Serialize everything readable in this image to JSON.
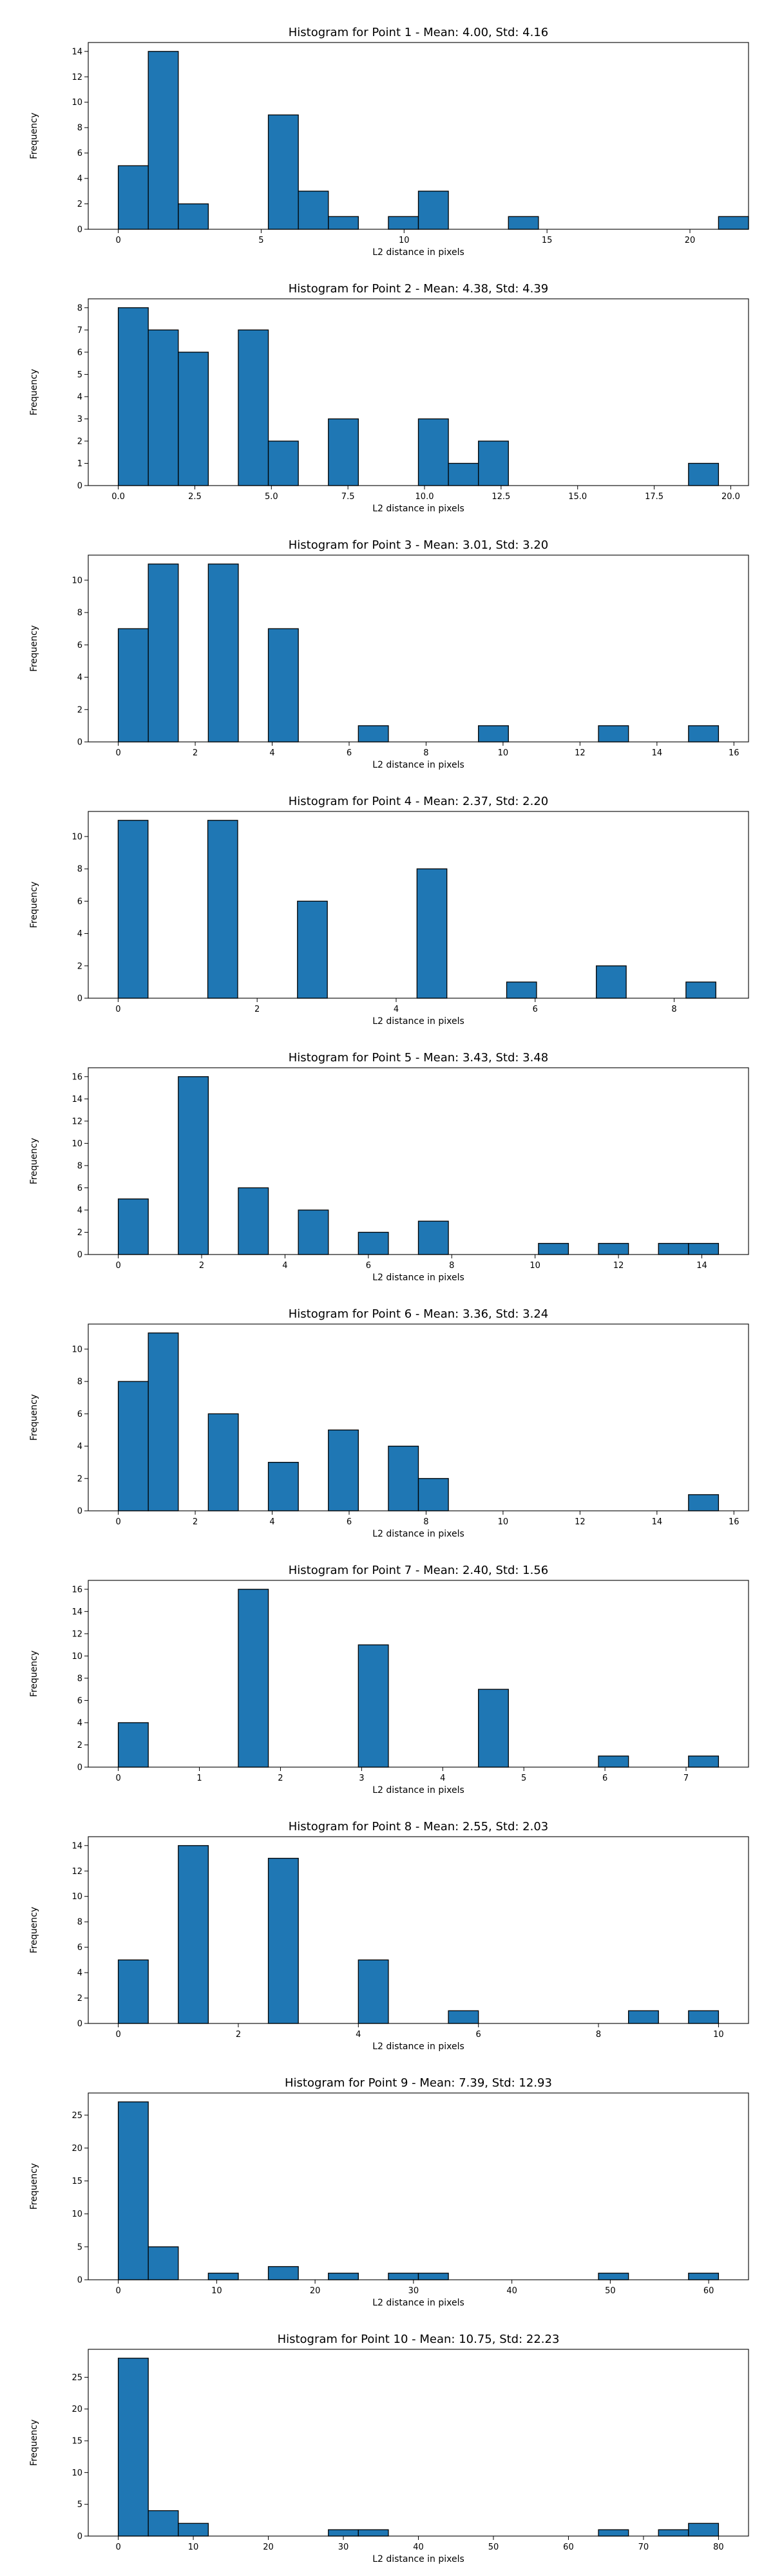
{
  "chart_data": [
    {
      "type": "bar",
      "title": "Histogram for Point 1 - Mean: 4.00, Std: 4.16",
      "xlabel": "L2 distance in pixels",
      "ylabel": "Frequency",
      "xlim": [
        -1.05,
        22.05
      ],
      "ylim": [
        0,
        14.7
      ],
      "bin_start": 0,
      "bin_width": 1.05,
      "values": [
        5,
        14,
        2,
        0,
        0,
        9,
        3,
        1,
        0,
        1,
        3,
        0,
        0,
        1,
        0,
        0,
        0,
        0,
        0,
        0,
        1
      ],
      "xticks": [
        0,
        5,
        10,
        15,
        20
      ],
      "xtick_labels": [
        "0",
        "5",
        "10",
        "15",
        "20"
      ],
      "yticks": [
        0,
        2,
        4,
        6,
        8,
        10,
        12,
        14
      ],
      "ytick_labels": [
        "0",
        "2",
        "4",
        "6",
        "8",
        "10",
        "12",
        "14"
      ]
    },
    {
      "type": "bar",
      "title": "Histogram for Point 2 - Mean: 4.38, Std: 4.39",
      "xlabel": "L2 distance in pixels",
      "ylabel": "Frequency",
      "xlim": [
        -0.98,
        20.58
      ],
      "ylim": [
        0,
        8.4
      ],
      "bin_start": 0,
      "bin_width": 0.98,
      "values": [
        8,
        7,
        6,
        0,
        7,
        2,
        0,
        3,
        0,
        0,
        3,
        1,
        2,
        0,
        0,
        0,
        0,
        0,
        0,
        1
      ],
      "xticks": [
        0,
        2.5,
        5,
        7.5,
        10,
        12.5,
        15,
        17.5,
        20
      ],
      "xtick_labels": [
        "0.0",
        "2.5",
        "5.0",
        "7.5",
        "10.0",
        "12.5",
        "15.0",
        "17.5",
        "20.0"
      ],
      "yticks": [
        0,
        1,
        2,
        3,
        4,
        5,
        6,
        7,
        8
      ],
      "ytick_labels": [
        "0",
        "1",
        "2",
        "3",
        "4",
        "5",
        "6",
        "7",
        "8"
      ]
    },
    {
      "type": "bar",
      "title": "Histogram for Point 3 - Mean: 3.01, Std: 3.20",
      "xlabel": "L2 distance in pixels",
      "ylabel": "Frequency",
      "xlim": [
        -0.78,
        16.38
      ],
      "ylim": [
        0,
        11.55
      ],
      "bin_start": 0,
      "bin_width": 0.78,
      "values": [
        7,
        11,
        0,
        11,
        0,
        7,
        0,
        0,
        1,
        0,
        0,
        0,
        1,
        0,
        0,
        0,
        1,
        0,
        0,
        1
      ],
      "xticks": [
        0,
        2,
        4,
        6,
        8,
        10,
        12,
        14,
        16
      ],
      "xtick_labels": [
        "0",
        "2",
        "4",
        "6",
        "8",
        "10",
        "12",
        "14",
        "16"
      ],
      "yticks": [
        0,
        2,
        4,
        6,
        8,
        10
      ],
      "ytick_labels": [
        "0",
        "2",
        "4",
        "6",
        "8",
        "10"
      ]
    },
    {
      "type": "bar",
      "title": "Histogram for Point 4 - Mean: 2.37, Std: 2.20",
      "xlabel": "L2 distance in pixels",
      "ylabel": "Frequency",
      "xlim": [
        -0.43,
        9.07
      ],
      "ylim": [
        0,
        11.55
      ],
      "bin_start": 0,
      "bin_width": 0.43,
      "values": [
        11,
        0,
        0,
        11,
        0,
        0,
        6,
        0,
        0,
        0,
        8,
        0,
        0,
        1,
        0,
        0,
        2,
        0,
        0,
        1
      ],
      "xticks": [
        0,
        2,
        4,
        6,
        8
      ],
      "xtick_labels": [
        "0",
        "2",
        "4",
        "6",
        "8"
      ],
      "yticks": [
        0,
        2,
        4,
        6,
        8,
        10
      ],
      "ytick_labels": [
        "0",
        "2",
        "4",
        "6",
        "8",
        "10"
      ]
    },
    {
      "type": "bar",
      "title": "Histogram for Point 5 - Mean: 3.43, Std: 3.48",
      "xlabel": "L2 distance in pixels",
      "ylabel": "Frequency",
      "xlim": [
        -0.72,
        15.12
      ],
      "ylim": [
        0,
        16.8
      ],
      "bin_start": 0,
      "bin_width": 0.72,
      "values": [
        5,
        0,
        16,
        0,
        6,
        0,
        4,
        0,
        2,
        0,
        3,
        0,
        0,
        0,
        1,
        0,
        1,
        0,
        1,
        1
      ],
      "xticks": [
        0,
        2,
        4,
        6,
        8,
        10,
        12,
        14
      ],
      "xtick_labels": [
        "0",
        "2",
        "4",
        "6",
        "8",
        "10",
        "12",
        "14"
      ],
      "yticks": [
        0,
        2,
        4,
        6,
        8,
        10,
        12,
        14,
        16
      ],
      "ytick_labels": [
        "0",
        "2",
        "4",
        "6",
        "8",
        "10",
        "12",
        "14",
        "16"
      ]
    },
    {
      "type": "bar",
      "title": "Histogram for Point 6 - Mean: 3.36, Std: 3.24",
      "xlabel": "L2 distance in pixels",
      "ylabel": "Frequency",
      "xlim": [
        -0.78,
        16.38
      ],
      "ylim": [
        0,
        11.55
      ],
      "bin_start": 0,
      "bin_width": 0.78,
      "values": [
        8,
        11,
        0,
        6,
        0,
        3,
        0,
        5,
        0,
        4,
        2,
        0,
        0,
        0,
        0,
        0,
        0,
        0,
        0,
        1
      ],
      "xticks": [
        0,
        2,
        4,
        6,
        8,
        10,
        12,
        14,
        16
      ],
      "xtick_labels": [
        "0",
        "2",
        "4",
        "6",
        "8",
        "10",
        "12",
        "14",
        "16"
      ],
      "yticks": [
        0,
        2,
        4,
        6,
        8,
        10
      ],
      "ytick_labels": [
        "0",
        "2",
        "4",
        "6",
        "8",
        "10"
      ]
    },
    {
      "type": "bar",
      "title": "Histogram for Point 7 - Mean: 2.40, Std: 1.56",
      "xlabel": "L2 distance in pixels",
      "ylabel": "Frequency",
      "xlim": [
        -0.37,
        7.77
      ],
      "ylim": [
        0,
        16.8
      ],
      "bin_start": 0,
      "bin_width": 0.37,
      "values": [
        4,
        0,
        0,
        0,
        16,
        0,
        0,
        0,
        11,
        0,
        0,
        0,
        7,
        0,
        0,
        0,
        1,
        0,
        0,
        1
      ],
      "xticks": [
        0,
        1,
        2,
        3,
        4,
        5,
        6,
        7
      ],
      "xtick_labels": [
        "0",
        "1",
        "2",
        "3",
        "4",
        "5",
        "6",
        "7"
      ],
      "yticks": [
        0,
        2,
        4,
        6,
        8,
        10,
        12,
        14,
        16
      ],
      "ytick_labels": [
        "0",
        "2",
        "4",
        "6",
        "8",
        "10",
        "12",
        "14",
        "16"
      ]
    },
    {
      "type": "bar",
      "title": "Histogram for Point 8 - Mean: 2.55, Std: 2.03",
      "xlabel": "L2 distance in pixels",
      "ylabel": "Frequency",
      "xlim": [
        -0.5,
        10.5
      ],
      "ylim": [
        0,
        14.7
      ],
      "bin_start": 0,
      "bin_width": 0.5,
      "values": [
        5,
        0,
        14,
        0,
        0,
        13,
        0,
        0,
        5,
        0,
        0,
        1,
        0,
        0,
        0,
        0,
        0,
        1,
        0,
        1
      ],
      "xticks": [
        0,
        2,
        4,
        6,
        8,
        10
      ],
      "xtick_labels": [
        "0",
        "2",
        "4",
        "6",
        "8",
        "10"
      ],
      "yticks": [
        0,
        2,
        4,
        6,
        8,
        10,
        12,
        14
      ],
      "ytick_labels": [
        "0",
        "2",
        "4",
        "6",
        "8",
        "10",
        "12",
        "14"
      ]
    },
    {
      "type": "bar",
      "title": "Histogram for Point 9 - Mean: 7.39, Std: 12.93",
      "xlabel": "L2 distance in pixels",
      "ylabel": "Frequency",
      "xlim": [
        -3.05,
        64.05
      ],
      "ylim": [
        0,
        28.35
      ],
      "bin_start": 0,
      "bin_width": 3.05,
      "values": [
        27,
        5,
        0,
        1,
        0,
        2,
        0,
        1,
        0,
        1,
        1,
        0,
        0,
        0,
        0,
        0,
        1,
        0,
        0,
        1
      ],
      "xticks": [
        0,
        10,
        20,
        30,
        40,
        50,
        60
      ],
      "xtick_labels": [
        "0",
        "10",
        "20",
        "30",
        "40",
        "50",
        "60"
      ],
      "yticks": [
        0,
        5,
        10,
        15,
        20,
        25
      ],
      "ytick_labels": [
        "0",
        "5",
        "10",
        "15",
        "20",
        "25"
      ]
    },
    {
      "type": "bar",
      "title": "Histogram for Point 10 - Mean: 10.75, Std: 22.23",
      "xlabel": "L2 distance in pixels",
      "ylabel": "Frequency",
      "xlim": [
        -4,
        84
      ],
      "ylim": [
        0,
        29.4
      ],
      "bin_start": 0,
      "bin_width": 4,
      "values": [
        28,
        4,
        2,
        0,
        0,
        0,
        0,
        1,
        1,
        0,
        0,
        0,
        0,
        0,
        0,
        0,
        1,
        0,
        1,
        2
      ],
      "xticks": [
        0,
        10,
        20,
        30,
        40,
        50,
        60,
        70,
        80
      ],
      "xtick_labels": [
        "0",
        "10",
        "20",
        "30",
        "40",
        "50",
        "60",
        "70",
        "80"
      ],
      "yticks": [
        0,
        5,
        10,
        15,
        20,
        25
      ],
      "ytick_labels": [
        "0",
        "5",
        "10",
        "15",
        "20",
        "25"
      ]
    }
  ]
}
